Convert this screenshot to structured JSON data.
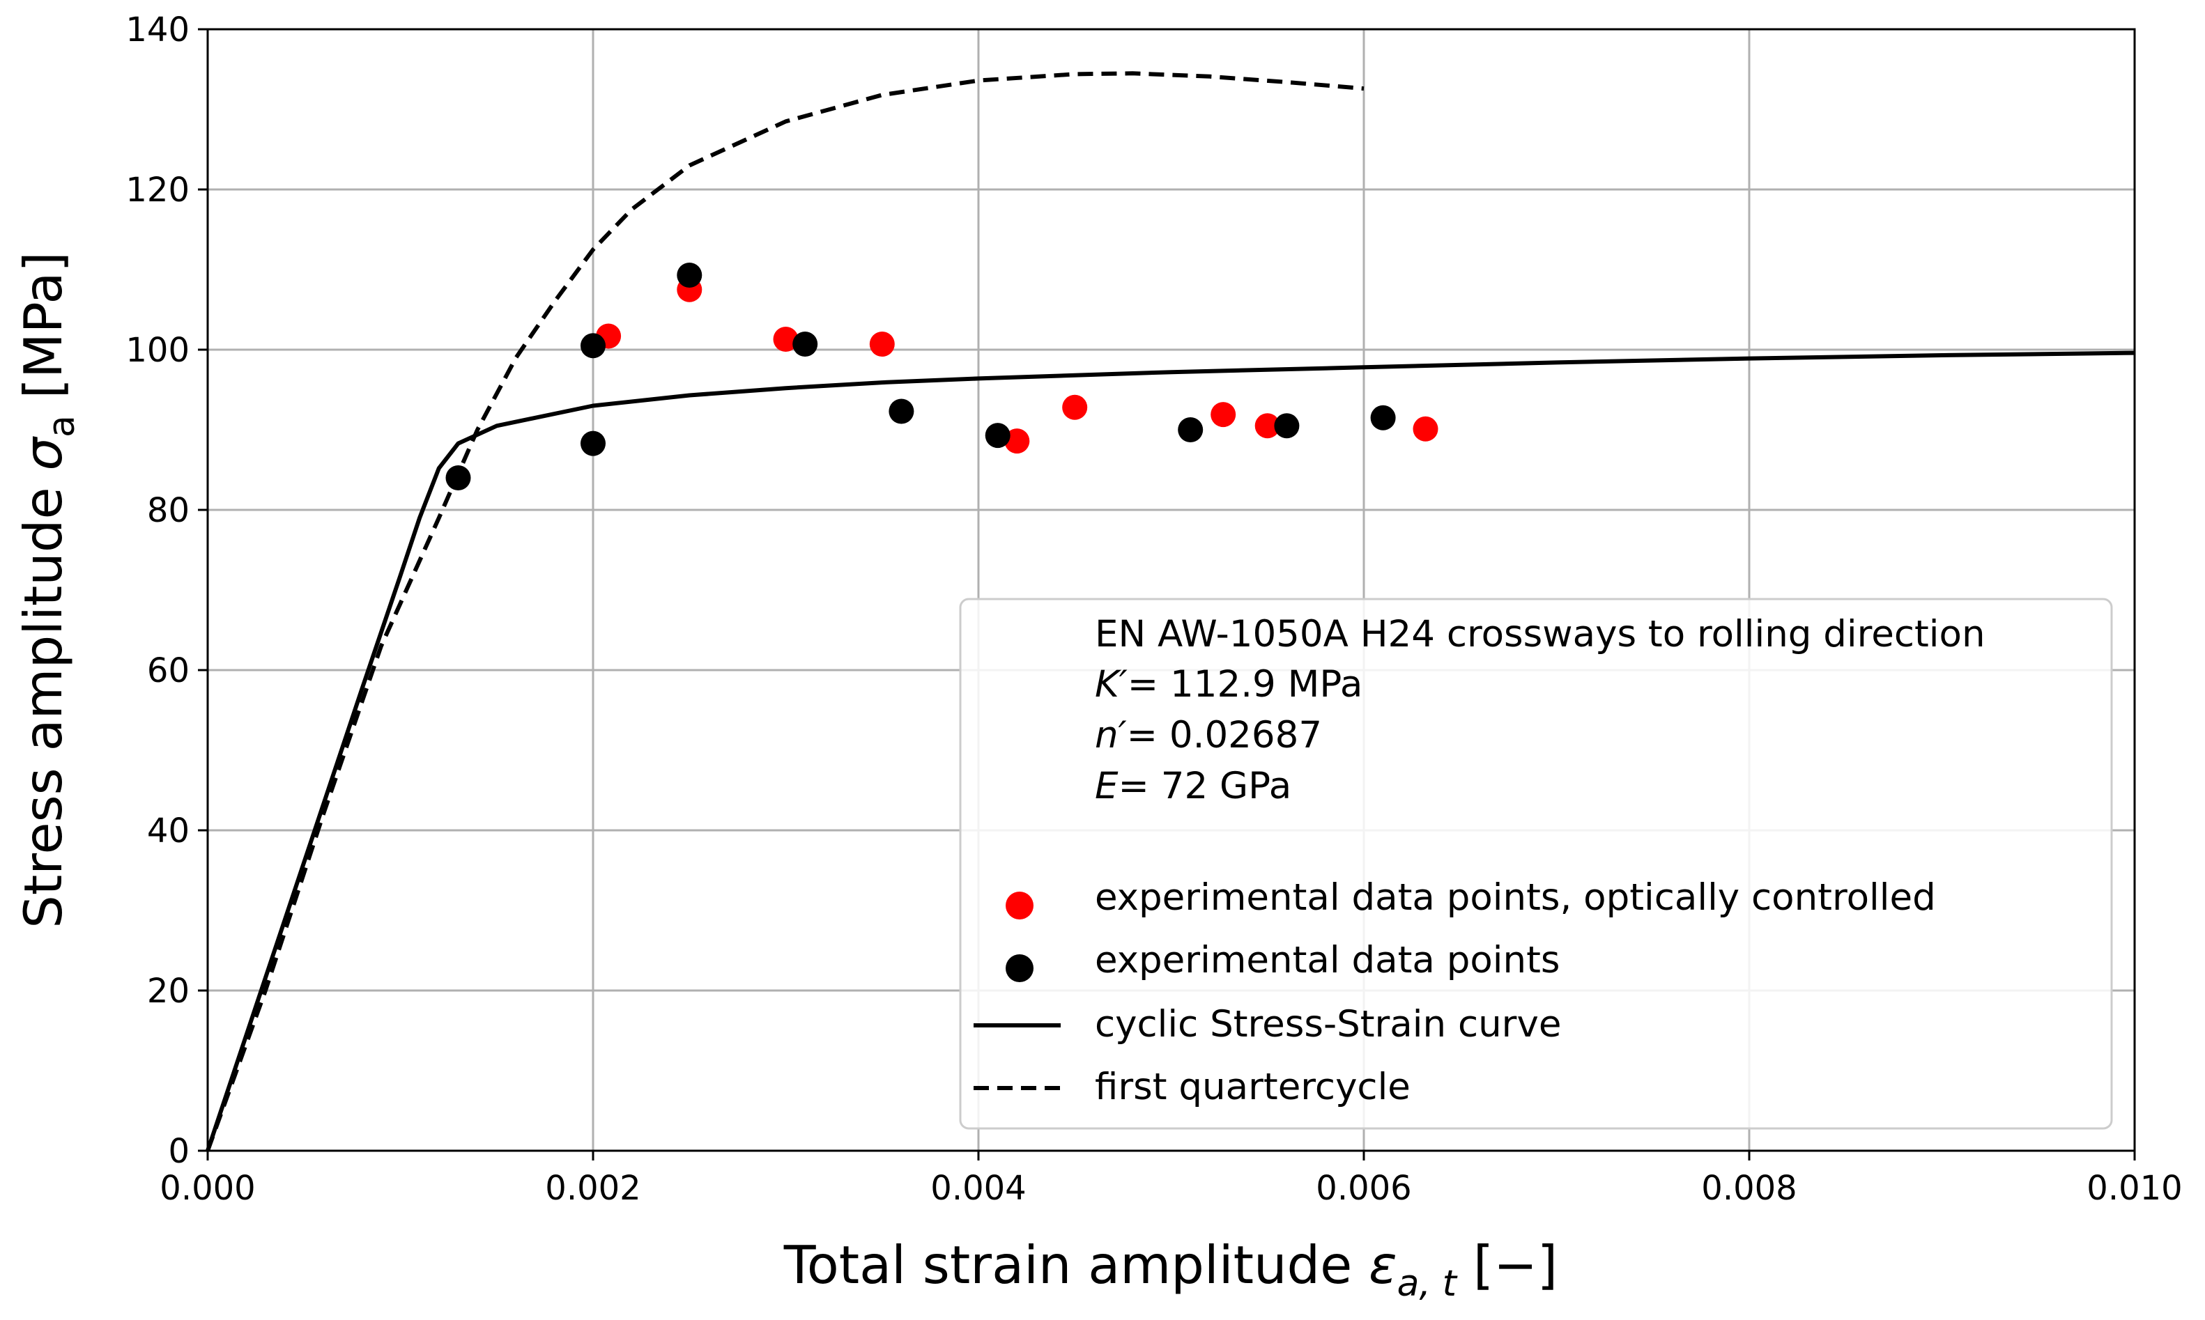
{
  "chart_data": {
    "type": "scatter",
    "xlabel": {
      "main": "Total strain amplitude ",
      "symbol": "ε",
      "sub": "a, t",
      "unit": " [−]"
    },
    "ylabel": {
      "main": "Stress amplitude ",
      "symbol": "σ",
      "sub": "a",
      "unit": " [MPa]"
    },
    "xlim": [
      0,
      0.01
    ],
    "ylim": [
      0,
      140
    ],
    "grid": true,
    "xticks": [
      0.0,
      0.002,
      0.004,
      0.006,
      0.008,
      0.01
    ],
    "xtick_labels": [
      "0.000",
      "0.002",
      "0.004",
      "0.006",
      "0.008",
      "0.010"
    ],
    "yticks": [
      0,
      20,
      40,
      60,
      80,
      100,
      120,
      140
    ],
    "ytick_labels": [
      "0",
      "20",
      "40",
      "60",
      "80",
      "100",
      "120",
      "140"
    ],
    "legend_position": "lower-right",
    "legend_header": [
      {
        "plain": "EN AW-1050A H24 crossways to rolling direction"
      },
      {
        "italic": "K′",
        "plain": "= 112.9 MPa"
      },
      {
        "italic": "n′",
        "plain": "=  0.02687"
      },
      {
        "italic": "E",
        "plain": "=  72 GPa"
      }
    ],
    "series": [
      {
        "name": "experimental data points, optically controlled",
        "kind": "scatter",
        "color": "#ff0000",
        "points": [
          [
            0.00208,
            101.7
          ],
          [
            0.0025,
            107.5
          ],
          [
            0.003,
            101.3
          ],
          [
            0.0035,
            100.7
          ],
          [
            0.0042,
            88.6
          ],
          [
            0.0045,
            92.8
          ],
          [
            0.00527,
            91.9
          ],
          [
            0.0055,
            90.5
          ],
          [
            0.00632,
            90.1
          ]
        ]
      },
      {
        "name": "experimental data points",
        "kind": "scatter",
        "color": "#000000",
        "points": [
          [
            0.0013,
            84.0
          ],
          [
            0.002,
            100.5
          ],
          [
            0.002,
            88.3
          ],
          [
            0.0025,
            109.3
          ],
          [
            0.0031,
            100.7
          ],
          [
            0.0036,
            92.3
          ],
          [
            0.0041,
            89.3
          ],
          [
            0.0051,
            90.0
          ],
          [
            0.0056,
            90.5
          ],
          [
            0.0061,
            91.5
          ]
        ]
      },
      {
        "name": "cyclic Stress-Strain curve",
        "kind": "line",
        "style": "solid",
        "color": "#000000",
        "params": {
          "K_prime_MPa": 112.9,
          "n_prime": 0.02687,
          "E_MPa": 72000
        },
        "points": [
          [
            0,
            0
          ],
          [
            0.0002,
            14.4
          ],
          [
            0.0004,
            28.8
          ],
          [
            0.0006,
            43.2
          ],
          [
            0.0008,
            57.6
          ],
          [
            0.001,
            71.8
          ],
          [
            0.0011,
            79.0
          ],
          [
            0.0012,
            85.2
          ],
          [
            0.0013,
            88.3
          ],
          [
            0.0015,
            90.5
          ],
          [
            0.002,
            93.0
          ],
          [
            0.0025,
            94.3
          ],
          [
            0.003,
            95.2
          ],
          [
            0.0035,
            95.9
          ],
          [
            0.004,
            96.4
          ],
          [
            0.005,
            97.2
          ],
          [
            0.006,
            97.8
          ],
          [
            0.007,
            98.4
          ],
          [
            0.008,
            98.9
          ],
          [
            0.009,
            99.3
          ],
          [
            0.01,
            99.6
          ]
        ]
      },
      {
        "name": "first quartercycle",
        "kind": "line",
        "style": "dashed",
        "color": "#000000",
        "points": [
          [
            0,
            0
          ],
          [
            0.0003,
            20.0
          ],
          [
            0.0006,
            42.0
          ],
          [
            0.0009,
            63.0
          ],
          [
            0.0012,
            79.0
          ],
          [
            0.0014,
            90.0
          ],
          [
            0.0016,
            99.0
          ],
          [
            0.0018,
            106.0
          ],
          [
            0.002,
            112.5
          ],
          [
            0.0022,
            117.5
          ],
          [
            0.0025,
            123.0
          ],
          [
            0.003,
            128.5
          ],
          [
            0.0035,
            131.8
          ],
          [
            0.004,
            133.6
          ],
          [
            0.0045,
            134.4
          ],
          [
            0.0048,
            134.5
          ],
          [
            0.0052,
            134.1
          ],
          [
            0.0056,
            133.4
          ],
          [
            0.006,
            132.6
          ]
        ]
      }
    ]
  }
}
